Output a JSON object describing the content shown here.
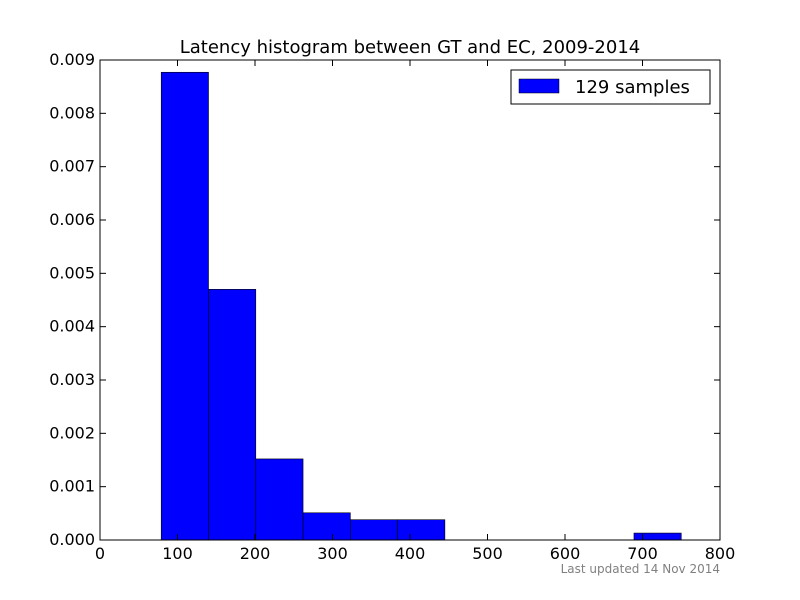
{
  "chart_data": {
    "type": "bar",
    "title": "Latency histogram between GT and EC, 2009-2014",
    "xlabel": "",
    "ylabel": "",
    "xlim": [
      0,
      800
    ],
    "ylim": [
      0,
      0.009
    ],
    "x_ticks": [
      0,
      100,
      200,
      300,
      400,
      500,
      600,
      700,
      800
    ],
    "y_ticks": [
      0.0,
      0.001,
      0.002,
      0.003,
      0.004,
      0.005,
      0.006,
      0.007,
      0.008,
      0.009
    ],
    "y_tick_labels": [
      "0.000",
      "0.001",
      "0.002",
      "0.003",
      "0.004",
      "0.005",
      "0.006",
      "0.007",
      "0.008",
      "0.009"
    ],
    "bins": [
      {
        "x0": 79,
        "x1": 140,
        "value": 0.00877
      },
      {
        "x0": 140,
        "x1": 201,
        "value": 0.0047
      },
      {
        "x0": 201,
        "x1": 262,
        "value": 0.00152
      },
      {
        "x0": 262,
        "x1": 323,
        "value": 0.00051
      },
      {
        "x0": 323,
        "x1": 384,
        "value": 0.00038
      },
      {
        "x0": 384,
        "x1": 445,
        "value": 0.00038
      },
      {
        "x0": 445,
        "x1": 506,
        "value": 0
      },
      {
        "x0": 506,
        "x1": 567,
        "value": 0
      },
      {
        "x0": 567,
        "x1": 628,
        "value": 0
      },
      {
        "x0": 628,
        "x1": 689,
        "value": 0
      },
      {
        "x0": 689,
        "x1": 750,
        "value": 0.00013
      }
    ],
    "series": [
      {
        "name": "129 samples",
        "color": "#0000ff"
      }
    ],
    "legend_position": "top-right",
    "grid": false
  },
  "footer": {
    "note": "Last updated 14 Nov 2014"
  }
}
